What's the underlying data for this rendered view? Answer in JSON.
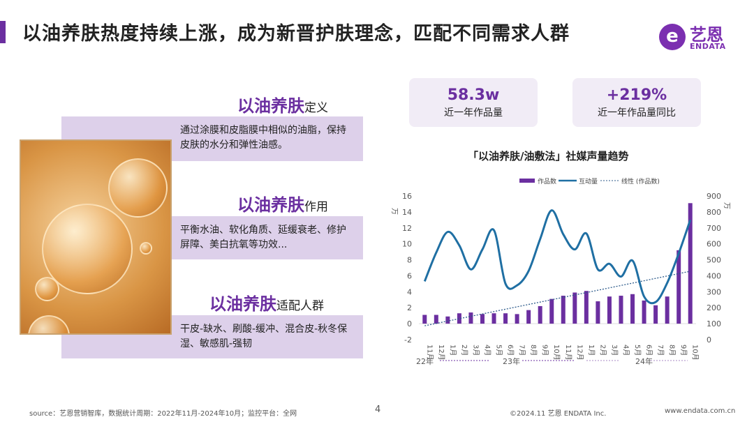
{
  "header": {
    "title": "以油养肤热度持续上涨，成为新晋护肤理念，匹配不同需求人群"
  },
  "logo": {
    "mark": "e",
    "cn": "艺恩",
    "en": "ENDATA"
  },
  "sections": [
    {
      "title": "以油养肤",
      "suffix": "定义",
      "text": "通过涂膜和皮脂膜中相似的油脂，保持皮肤的水分和弹性油感。"
    },
    {
      "title": "以油养肤",
      "suffix": "作用",
      "text": "平衡水油、软化角质、延缓衰老、修护屏障、美白抗氧等功效..."
    },
    {
      "title": "以油养肤",
      "suffix": "适配人群",
      "text": "干皮-缺水、刷酸-缓冲、混合皮-秋冬保湿、敏感肌-强韧"
    }
  ],
  "stats": [
    {
      "value": "58.3w",
      "label": "近一年作品量"
    },
    {
      "value": "+219%",
      "label": "近一年作品量同比"
    }
  ],
  "chart_data": {
    "type": "bar",
    "title": "「以油养肤/油敷法」社媒声量趋势",
    "categories": [
      "11月",
      "12月",
      "1月",
      "2月",
      "3月",
      "4月",
      "5月",
      "6月",
      "7月",
      "8月",
      "9月",
      "10月",
      "11月",
      "12月",
      "1月",
      "2月",
      "3月",
      "4月",
      "5月",
      "6月",
      "7月",
      "8月",
      "9月",
      "10月"
    ],
    "year_labels": [
      "22年",
      "23年",
      "24年"
    ],
    "series": [
      {
        "name": "作品数",
        "type": "bar",
        "axis": "left",
        "color": "#6b2fa0",
        "values": [
          1.1,
          1.1,
          0.9,
          1.3,
          1.4,
          1.2,
          1.3,
          1.3,
          1.2,
          1.7,
          2.2,
          3.1,
          3.5,
          3.9,
          4.1,
          2.8,
          3.4,
          3.5,
          3.7,
          2.9,
          2.3,
          3.4,
          9.2,
          15.1
        ]
      },
      {
        "name": "互动量",
        "type": "line",
        "axis": "right",
        "color": "#1f6fa3",
        "values": [
          365,
          545,
          675,
          590,
          440,
          565,
          685,
          350,
          340,
          430,
          630,
          810,
          660,
          565,
          665,
          440,
          475,
          395,
          495,
          270,
          235,
          355,
          540,
          750
        ]
      },
      {
        "name": "线性 (作品数)",
        "type": "trendline",
        "axis": "left",
        "color": "#2c5a8a"
      }
    ],
    "ylim_left": [
      -2,
      16
    ],
    "yticks_left": [
      -2,
      0,
      2,
      4,
      6,
      8,
      10,
      12,
      14,
      16
    ],
    "ylabel_left": "万",
    "ylim_right": [
      0,
      900
    ],
    "yticks_right": [
      0,
      100,
      200,
      300,
      400,
      500,
      600,
      700,
      800,
      900
    ],
    "ylabel_right": "万",
    "legend": "top"
  },
  "footer": {
    "source": "source：艺恩营销智库，数据统计周期：2022年11月-2024年10月；监控平台：全网",
    "page": "4",
    "copyright": "©2024.11 艺恩 ENDATA Inc.",
    "url": "www.endata.com.cn"
  }
}
